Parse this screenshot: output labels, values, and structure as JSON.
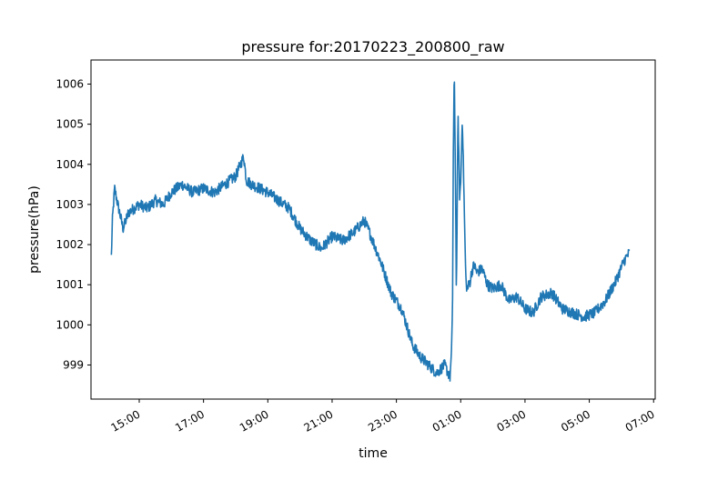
{
  "chart_data": {
    "type": "line",
    "title": "pressure for:20170223_200800_raw",
    "xlabel": "time",
    "ylabel": "pressure(hPa)",
    "xlim": [
      "2017-02-23 13:30",
      "2017-02-24 07:03"
    ],
    "ylim": [
      998.15,
      1006.6
    ],
    "x_ticks": [
      {
        "t": "2017-02-23 15:00",
        "label": "15:00"
      },
      {
        "t": "2017-02-23 17:00",
        "label": "17:00"
      },
      {
        "t": "2017-02-23 19:00",
        "label": "19:00"
      },
      {
        "t": "2017-02-23 21:00",
        "label": "21:00"
      },
      {
        "t": "2017-02-23 23:00",
        "label": "23:00"
      },
      {
        "t": "2017-02-24 01:00",
        "label": "01:00"
      },
      {
        "t": "2017-02-24 03:00",
        "label": "03:00"
      },
      {
        "t": "2017-02-24 05:00",
        "label": "05:00"
      },
      {
        "t": "2017-02-24 07:00",
        "label": "07:00"
      }
    ],
    "y_ticks": [
      999,
      1000,
      1001,
      1002,
      1003,
      1004,
      1005,
      1006
    ],
    "grid": false,
    "line_color": "#1f77b4",
    "series": [
      {
        "x": [
          "2017-02-23 14:08",
          "2017-02-23 14:10",
          "2017-02-23 14:14",
          "2017-02-23 14:20",
          "2017-02-23 14:30",
          "2017-02-23 14:40",
          "2017-02-23 14:50",
          "2017-02-23 15:00",
          "2017-02-23 15:15",
          "2017-02-23 15:30",
          "2017-02-23 15:45",
          "2017-02-23 16:00",
          "2017-02-23 16:20",
          "2017-02-23 16:40",
          "2017-02-23 17:00",
          "2017-02-23 17:20",
          "2017-02-23 17:40",
          "2017-02-23 18:00",
          "2017-02-23 18:15",
          "2017-02-23 18:20",
          "2017-02-23 18:30",
          "2017-02-23 18:45",
          "2017-02-23 19:00",
          "2017-02-23 19:20",
          "2017-02-23 19:40",
          "2017-02-23 20:00",
          "2017-02-23 20:20",
          "2017-02-23 20:40",
          "2017-02-23 21:00",
          "2017-02-23 21:20",
          "2017-02-23 21:40",
          "2017-02-23 22:00",
          "2017-02-23 22:10",
          "2017-02-23 22:30",
          "2017-02-23 22:50",
          "2017-02-23 23:10",
          "2017-02-23 23:30",
          "2017-02-23 23:45",
          "2017-02-24 00:00",
          "2017-02-24 00:15",
          "2017-02-24 00:30",
          "2017-02-24 00:40",
          "2017-02-24 00:43",
          "2017-02-24 00:45",
          "2017-02-24 00:46",
          "2017-02-24 00:48",
          "2017-02-24 00:50",
          "2017-02-24 00:52",
          "2017-02-24 00:55",
          "2017-02-24 00:58",
          "2017-02-24 01:00",
          "2017-02-24 01:03",
          "2017-02-24 01:05",
          "2017-02-24 01:08",
          "2017-02-24 01:10",
          "2017-02-24 01:13",
          "2017-02-24 01:15",
          "2017-02-24 01:18",
          "2017-02-24 01:20",
          "2017-02-24 01:25",
          "2017-02-24 01:30",
          "2017-02-24 01:40",
          "2017-02-24 01:50",
          "2017-02-24 02:00",
          "2017-02-24 02:15",
          "2017-02-24 02:30",
          "2017-02-24 02:45",
          "2017-02-24 03:00",
          "2017-02-24 03:15",
          "2017-02-24 03:30",
          "2017-02-24 03:50",
          "2017-02-24 04:10",
          "2017-02-24 04:30",
          "2017-02-24 04:50",
          "2017-02-24 05:10",
          "2017-02-24 05:30",
          "2017-02-24 05:50",
          "2017-02-24 06:05",
          "2017-02-24 06:15"
        ],
        "y": [
          1001.7,
          1002.6,
          1003.4,
          1003.0,
          1002.4,
          1002.8,
          1002.9,
          1003.0,
          1002.9,
          1003.1,
          1003.0,
          1003.3,
          1003.5,
          1003.3,
          1003.4,
          1003.3,
          1003.5,
          1003.7,
          1004.2,
          1003.6,
          1003.5,
          1003.4,
          1003.3,
          1003.1,
          1002.9,
          1002.4,
          1002.1,
          1001.9,
          1002.2,
          1002.1,
          1002.3,
          1002.6,
          1002.3,
          1001.6,
          1000.8,
          1000.4,
          999.5,
          999.2,
          999.0,
          998.8,
          999.0,
          998.7,
          999.3,
          1000.8,
          1004.0,
          1006.3,
          1004.0,
          1000.7,
          1005.3,
          1003.2,
          1003.5,
          1005.2,
          1004.0,
          1002.0,
          1001.0,
          1000.9,
          1001.0,
          1001.1,
          1001.3,
          1001.5,
          1001.3,
          1001.4,
          1001.0,
          1000.9,
          1001.0,
          1000.6,
          1000.7,
          1000.4,
          1000.3,
          1000.7,
          1000.8,
          1000.4,
          1000.3,
          1000.2,
          1000.3,
          1000.6,
          1001.1,
          1001.6,
          1001.8
        ]
      }
    ]
  }
}
